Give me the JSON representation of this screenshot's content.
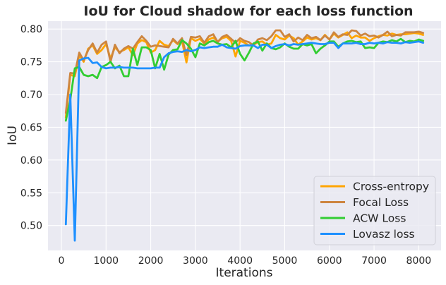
{
  "chart_data": {
    "type": "line",
    "title": "IoU for Cloud shadow for each loss function",
    "xlabel": "Iterations",
    "ylabel": "IoU",
    "xlim": [
      -300,
      8500
    ],
    "ylim": [
      0.462,
      0.812
    ],
    "xticks": [
      0,
      1000,
      2000,
      3000,
      4000,
      5000,
      6000,
      7000,
      8000
    ],
    "yticks": [
      0.5,
      0.55,
      0.6,
      0.65,
      0.7,
      0.75,
      0.8
    ],
    "xtick_labels": [
      "0",
      "1000",
      "2000",
      "3000",
      "4000",
      "5000",
      "6000",
      "7000",
      "8000"
    ],
    "ytick_labels": [
      "0.50",
      "0.55",
      "0.60",
      "0.65",
      "0.70",
      "0.75",
      "0.80"
    ],
    "grid": true,
    "legend_position": "lower-right",
    "x": [
      100,
      200,
      300,
      400,
      500,
      600,
      700,
      800,
      900,
      1000,
      1100,
      1200,
      1300,
      1400,
      1500,
      1600,
      1700,
      1800,
      1900,
      2000,
      2100,
      2200,
      2300,
      2400,
      2500,
      2600,
      2700,
      2800,
      2900,
      3000,
      3100,
      3200,
      3300,
      3400,
      3500,
      3600,
      3700,
      3800,
      3900,
      4000,
      4100,
      4200,
      4300,
      4400,
      4500,
      4600,
      4700,
      4800,
      4900,
      5000,
      5100,
      5200,
      5300,
      5400,
      5500,
      5600,
      5700,
      5800,
      5900,
      6000,
      6100,
      6200,
      6300,
      6400,
      6500,
      6600,
      6700,
      6800,
      6900,
      7000,
      7100,
      7200,
      7300,
      7400,
      7500,
      7600,
      7700,
      7800,
      7900,
      8000,
      8100
    ],
    "series": [
      {
        "name": "Cross-entropy",
        "color": "#FFA500",
        "values": [
          0.665,
          0.73,
          0.728,
          0.76,
          0.75,
          0.77,
          0.775,
          0.762,
          0.768,
          0.777,
          0.755,
          0.772,
          0.765,
          0.768,
          0.772,
          0.76,
          0.778,
          0.783,
          0.78,
          0.764,
          0.768,
          0.782,
          0.776,
          0.774,
          0.783,
          0.777,
          0.782,
          0.749,
          0.786,
          0.782,
          0.785,
          0.778,
          0.784,
          0.787,
          0.781,
          0.786,
          0.788,
          0.782,
          0.758,
          0.782,
          0.779,
          0.775,
          0.776,
          0.78,
          0.781,
          0.776,
          0.778,
          0.791,
          0.786,
          0.784,
          0.79,
          0.786,
          0.776,
          0.781,
          0.787,
          0.784,
          0.786,
          0.783,
          0.791,
          0.784,
          0.793,
          0.787,
          0.791,
          0.795,
          0.786,
          0.79,
          0.787,
          0.787,
          0.782,
          0.786,
          0.789,
          0.791,
          0.79,
          0.793,
          0.791,
          0.792,
          0.792,
          0.793,
          0.794,
          0.793,
          0.791
        ]
      },
      {
        "name": "Focal Loss",
        "color": "#CD853F",
        "values": [
          0.672,
          0.733,
          0.732,
          0.764,
          0.752,
          0.768,
          0.778,
          0.764,
          0.776,
          0.781,
          0.75,
          0.776,
          0.763,
          0.77,
          0.774,
          0.77,
          0.78,
          0.789,
          0.782,
          0.773,
          0.775,
          0.774,
          0.773,
          0.772,
          0.785,
          0.778,
          0.786,
          0.76,
          0.788,
          0.787,
          0.789,
          0.779,
          0.789,
          0.792,
          0.78,
          0.788,
          0.791,
          0.785,
          0.779,
          0.786,
          0.782,
          0.78,
          0.775,
          0.784,
          0.786,
          0.783,
          0.789,
          0.798,
          0.798,
          0.788,
          0.792,
          0.781,
          0.787,
          0.783,
          0.791,
          0.786,
          0.788,
          0.783,
          0.79,
          0.784,
          0.795,
          0.788,
          0.792,
          0.791,
          0.798,
          0.797,
          0.79,
          0.793,
          0.789,
          0.79,
          0.787,
          0.791,
          0.796,
          0.789,
          0.791,
          0.79,
          0.795,
          0.795,
          0.795,
          0.796,
          0.794
        ]
      },
      {
        "name": "ACW Loss",
        "color": "#32CD32",
        "values": [
          0.66,
          0.692,
          0.74,
          0.742,
          0.73,
          0.728,
          0.73,
          0.725,
          0.742,
          0.745,
          0.75,
          0.74,
          0.744,
          0.728,
          0.728,
          0.77,
          0.745,
          0.772,
          0.772,
          0.768,
          0.74,
          0.762,
          0.738,
          0.761,
          0.768,
          0.769,
          0.783,
          0.778,
          0.77,
          0.757,
          0.778,
          0.775,
          0.78,
          0.782,
          0.778,
          0.776,
          0.777,
          0.772,
          0.782,
          0.762,
          0.752,
          0.764,
          0.778,
          0.781,
          0.767,
          0.778,
          0.771,
          0.769,
          0.772,
          0.778,
          0.773,
          0.77,
          0.77,
          0.777,
          0.775,
          0.777,
          0.763,
          0.77,
          0.775,
          0.781,
          0.781,
          0.773,
          0.778,
          0.781,
          0.782,
          0.78,
          0.781,
          0.771,
          0.772,
          0.771,
          0.779,
          0.781,
          0.78,
          0.783,
          0.781,
          0.785,
          0.78,
          0.782,
          0.781,
          0.784,
          0.782
        ]
      },
      {
        "name": "Lovasz loss",
        "color": "#1E90FF",
        "values": [
          0.502,
          0.7,
          0.477,
          0.752,
          0.755,
          0.756,
          0.748,
          0.749,
          0.742,
          0.74,
          0.741,
          0.741,
          0.742,
          0.741,
          0.741,
          0.741,
          0.74,
          0.74,
          0.74,
          0.74,
          0.741,
          0.741,
          0.757,
          0.763,
          0.765,
          0.766,
          0.765,
          0.768,
          0.766,
          0.768,
          0.772,
          0.771,
          0.772,
          0.773,
          0.773,
          0.776,
          0.772,
          0.771,
          0.77,
          0.774,
          0.775,
          0.775,
          0.775,
          0.771,
          0.776,
          0.776,
          0.771,
          0.774,
          0.776,
          0.777,
          0.775,
          0.777,
          0.776,
          0.777,
          0.778,
          0.779,
          0.778,
          0.777,
          0.777,
          0.779,
          0.779,
          0.771,
          0.778,
          0.778,
          0.778,
          0.779,
          0.777,
          0.777,
          0.779,
          0.778,
          0.779,
          0.778,
          0.78,
          0.779,
          0.779,
          0.778,
          0.78,
          0.779,
          0.78,
          0.781,
          0.779
        ]
      }
    ]
  }
}
